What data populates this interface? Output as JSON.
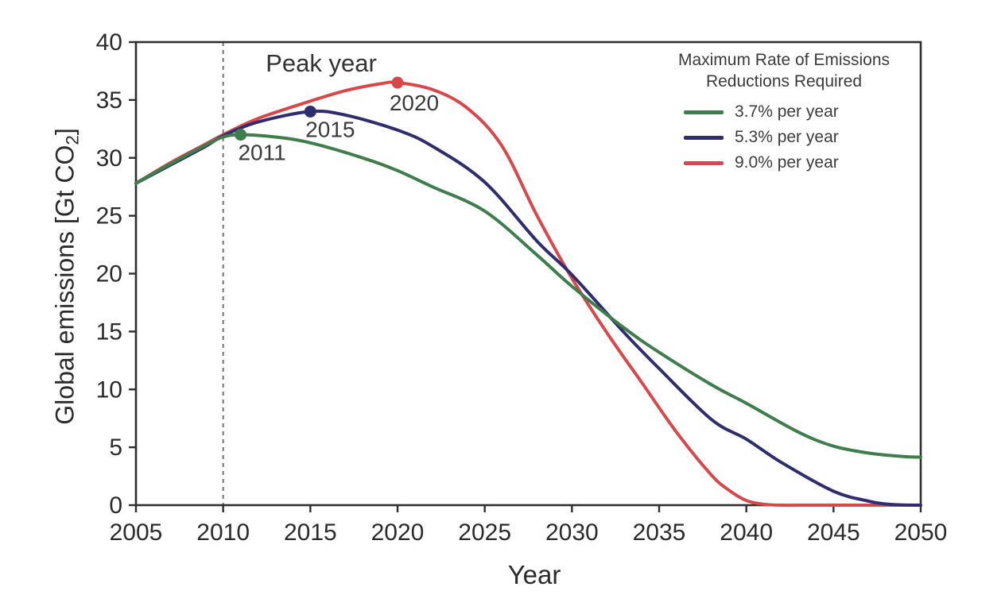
{
  "figure": {
    "background": "#ffffff",
    "peak_year_annotation": "Peak year",
    "x_axis_title": "Year",
    "y_axis_title_prefix": "Global emissions [Gt CO",
    "y_axis_title_sub": "2",
    "y_axis_title_suffix": "]"
  },
  "legend": {
    "title_line1": "Maximum Rate of Emissions",
    "title_line2": "Reductions Required"
  },
  "colors": {
    "axis": "#2e2e2e",
    "tick_text": "#2b2b2b",
    "annotation_text": "#3a3a3a",
    "dashed_line": "#666666"
  },
  "chart_data": {
    "type": "line",
    "title": "",
    "xlabel": "Year",
    "ylabel": "Global emissions [Gt CO2]",
    "xlim": [
      2005,
      2050
    ],
    "ylim": [
      0,
      40
    ],
    "x_ticks": [
      2005,
      2010,
      2015,
      2020,
      2025,
      2030,
      2035,
      2040,
      2045,
      2050
    ],
    "y_ticks": [
      0,
      5,
      10,
      15,
      20,
      25,
      30,
      35,
      40
    ],
    "grid": false,
    "legend_position": "top-right",
    "legend_title": "Maximum Rate of Emissions Reductions Required",
    "reference_line": {
      "type": "vertical-dashed",
      "x": 2010
    },
    "series": [
      {
        "name": "9.0% per year",
        "color": "#d8484a",
        "peak_year": 2020,
        "peak_value": 36.5,
        "points": [
          [
            2005,
            27.8
          ],
          [
            2007,
            29.6
          ],
          [
            2009,
            31.2
          ],
          [
            2010,
            32.0
          ],
          [
            2012,
            33.4
          ],
          [
            2015,
            34.9
          ],
          [
            2017,
            35.8
          ],
          [
            2019,
            36.4
          ],
          [
            2020,
            36.5
          ],
          [
            2022,
            35.9
          ],
          [
            2024,
            34.3
          ],
          [
            2026,
            31.0
          ],
          [
            2028,
            25.0
          ],
          [
            2030,
            19.6
          ],
          [
            2032,
            14.9
          ],
          [
            2034,
            10.6
          ],
          [
            2036,
            6.3
          ],
          [
            2038,
            2.6
          ],
          [
            2039,
            1.3
          ],
          [
            2040,
            0.4
          ],
          [
            2041,
            0.08
          ],
          [
            2042,
            0
          ],
          [
            2044,
            0
          ],
          [
            2047,
            0
          ],
          [
            2050,
            0
          ]
        ]
      },
      {
        "name": "5.3% per year",
        "color": "#2e2e6f",
        "peak_year": 2015,
        "peak_value": 34.0,
        "points": [
          [
            2005,
            27.8
          ],
          [
            2007,
            29.4
          ],
          [
            2009,
            31.0
          ],
          [
            2010,
            31.9
          ],
          [
            2012,
            33.1
          ],
          [
            2015,
            34.0
          ],
          [
            2017,
            33.7
          ],
          [
            2020,
            32.4
          ],
          [
            2022,
            31.0
          ],
          [
            2025,
            27.9
          ],
          [
            2028,
            22.8
          ],
          [
            2030,
            19.9
          ],
          [
            2033,
            14.9
          ],
          [
            2035,
            11.8
          ],
          [
            2038,
            7.4
          ],
          [
            2040,
            5.7
          ],
          [
            2042,
            3.7
          ],
          [
            2045,
            1.2
          ],
          [
            2047,
            0.35
          ],
          [
            2048,
            0.1
          ],
          [
            2049,
            0.02
          ],
          [
            2050,
            0
          ]
        ]
      },
      {
        "name": "3.7% per year",
        "color": "#3e7d4c",
        "peak_year": 2011,
        "peak_value": 32.0,
        "points": [
          [
            2005,
            27.8
          ],
          [
            2007,
            29.5
          ],
          [
            2009,
            31.1
          ],
          [
            2010,
            31.8
          ],
          [
            2011,
            32.0
          ],
          [
            2013,
            31.8
          ],
          [
            2015,
            31.3
          ],
          [
            2018,
            30.0
          ],
          [
            2020,
            28.9
          ],
          [
            2022,
            27.5
          ],
          [
            2025,
            25.4
          ],
          [
            2028,
            21.6
          ],
          [
            2030,
            18.9
          ],
          [
            2033,
            15.3
          ],
          [
            2035,
            13.2
          ],
          [
            2038,
            10.4
          ],
          [
            2040,
            8.8
          ],
          [
            2043,
            6.3
          ],
          [
            2045,
            5.1
          ],
          [
            2047,
            4.5
          ],
          [
            2049,
            4.2
          ],
          [
            2050,
            4.15
          ]
        ]
      }
    ],
    "legend_order": [
      2,
      1,
      0
    ],
    "annotations": [
      {
        "label": "2011",
        "year": 2011,
        "value": 32.0,
        "series": "3.7% per year",
        "label_offset": [
          27,
          32
        ]
      },
      {
        "label": "2015",
        "year": 2015,
        "value": 34.0,
        "series": "5.3% per year",
        "label_offset": [
          25,
          32
        ]
      },
      {
        "label": "2020",
        "year": 2020,
        "value": 36.5,
        "series": "9.0% per year",
        "label_offset": [
          21,
          35
        ]
      }
    ]
  }
}
